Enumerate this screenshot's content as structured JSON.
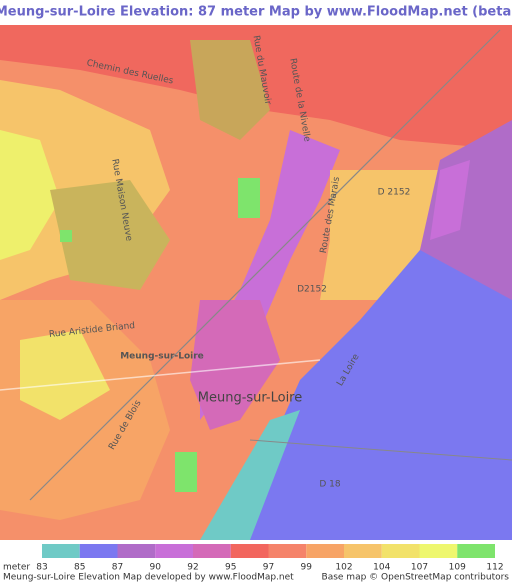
{
  "header": {
    "title": "Meung-sur-Loire Elevation: 87 meter Map by www.FloodMap.net (beta)"
  },
  "map_labels": [
    "Chemin des Ruelles",
    "Rue Maison Neuve",
    "Route de la Nivelle",
    "Route des Marais",
    "D 2152",
    "D2152",
    "Rue Aristide Briand",
    "Meung-sur-Loire",
    "Meung-sur-Loire",
    "Rue de Blois",
    "La Loire",
    "D 18",
    "Rue du Mauvoir"
  ],
  "legend": {
    "unit": "meter",
    "values": [
      83,
      85,
      87,
      90,
      92,
      95,
      97,
      99,
      102,
      104,
      107,
      109,
      112
    ],
    "colors": [
      "#6fcac6",
      "#7b78f0",
      "#b06cc8",
      "#c86fd8",
      "#d46ab8",
      "#f2665e",
      "#f5836a",
      "#f7a466",
      "#f6c46a",
      "#f2e26a",
      "#eef76e",
      "#7ee46c"
    ]
  },
  "footer": {
    "left": "Meung-sur-Loire Elevation Map developed by www.FloodMap.net",
    "right": "Base map © OpenStreetMap contributors"
  }
}
